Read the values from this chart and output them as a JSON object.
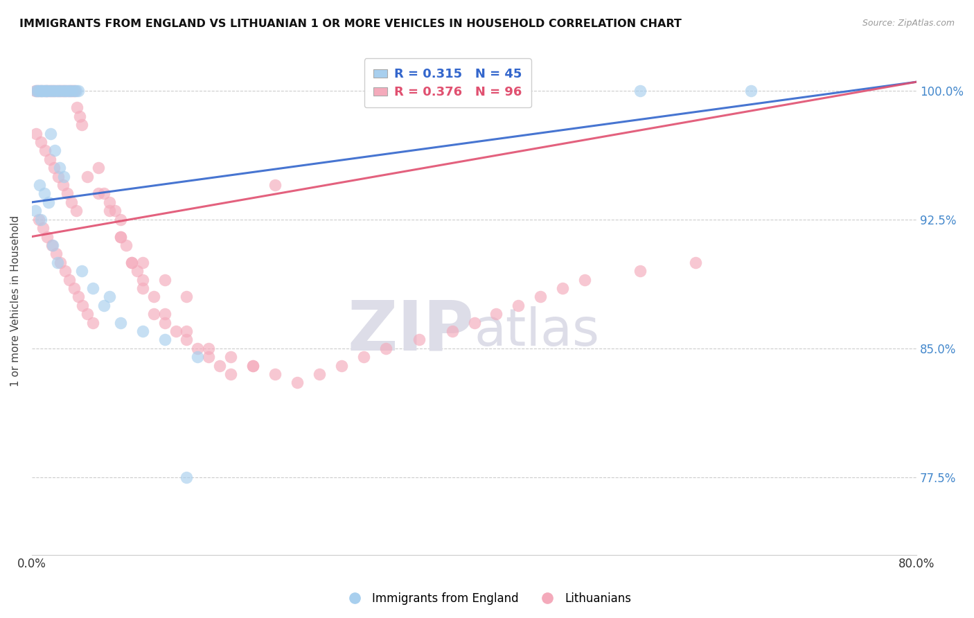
{
  "title": "IMMIGRANTS FROM ENGLAND VS LITHUANIAN 1 OR MORE VEHICLES IN HOUSEHOLD CORRELATION CHART",
  "source": "Source: ZipAtlas.com",
  "ylabel": "1 or more Vehicles in Household",
  "yticks": [
    77.5,
    85.0,
    92.5,
    100.0
  ],
  "ytick_labels": [
    "77.5%",
    "85.0%",
    "92.5%",
    "100.0%"
  ],
  "xmin": 0.0,
  "xmax": 80.0,
  "ymin": 73.0,
  "ymax": 102.5,
  "legend_england": "Immigrants from England",
  "legend_lithuanian": "Lithuanians",
  "R_england": 0.315,
  "N_england": 45,
  "R_lithuanian": 0.376,
  "N_lithuanian": 96,
  "color_england": "#A8CFEE",
  "color_lithuanian": "#F4AABB",
  "line_color_england": "#3366CC",
  "line_color_lithuanian": "#E05070",
  "england_x": [
    0.4,
    0.6,
    0.8,
    1.0,
    1.2,
    1.4,
    1.6,
    1.8,
    2.0,
    2.2,
    2.4,
    2.6,
    2.8,
    3.0,
    3.2,
    3.4,
    3.6,
    3.8,
    4.0,
    4.2,
    0.5,
    0.9,
    1.3,
    1.7,
    2.1,
    2.5,
    2.9,
    0.7,
    1.1,
    1.5,
    0.3,
    0.8,
    1.9,
    2.3,
    4.5,
    5.5,
    7.0,
    6.5,
    8.0,
    10.0,
    12.0,
    15.0,
    55.0,
    65.0,
    14.0
  ],
  "england_y": [
    100.0,
    100.0,
    100.0,
    100.0,
    100.0,
    100.0,
    100.0,
    100.0,
    100.0,
    100.0,
    100.0,
    100.0,
    100.0,
    100.0,
    100.0,
    100.0,
    100.0,
    100.0,
    100.0,
    100.0,
    100.0,
    100.0,
    100.0,
    97.5,
    96.5,
    95.5,
    95.0,
    94.5,
    94.0,
    93.5,
    93.0,
    92.5,
    91.0,
    90.0,
    89.5,
    88.5,
    88.0,
    87.5,
    86.5,
    86.0,
    85.5,
    84.5,
    100.0,
    100.0,
    77.5
  ],
  "lithuanian_x": [
    0.3,
    0.5,
    0.7,
    0.9,
    1.1,
    1.3,
    1.5,
    1.7,
    1.9,
    2.1,
    2.3,
    2.5,
    2.7,
    2.9,
    3.1,
    3.3,
    3.5,
    3.7,
    3.9,
    4.1,
    4.3,
    4.5,
    0.4,
    0.8,
    1.2,
    1.6,
    2.0,
    2.4,
    2.8,
    3.2,
    3.6,
    4.0,
    0.6,
    1.0,
    1.4,
    1.8,
    2.2,
    2.6,
    3.0,
    3.4,
    3.8,
    4.2,
    4.6,
    5.0,
    5.5,
    6.0,
    6.5,
    7.0,
    7.5,
    8.0,
    8.5,
    9.0,
    9.5,
    10.0,
    11.0,
    12.0,
    13.0,
    14.0,
    15.0,
    16.0,
    17.0,
    18.0,
    20.0,
    22.0,
    8.0,
    10.0,
    12.0,
    14.0,
    5.0,
    6.0,
    7.0,
    8.0,
    9.0,
    10.0,
    11.0,
    12.0,
    14.0,
    16.0,
    18.0,
    20.0,
    22.0,
    24.0,
    26.0,
    28.0,
    30.0,
    32.0,
    35.0,
    38.0,
    40.0,
    42.0,
    44.0,
    46.0,
    48.0,
    50.0,
    55.0,
    60.0
  ],
  "lithuanian_y": [
    100.0,
    100.0,
    100.0,
    100.0,
    100.0,
    100.0,
    100.0,
    100.0,
    100.0,
    100.0,
    100.0,
    100.0,
    100.0,
    100.0,
    100.0,
    100.0,
    100.0,
    100.0,
    100.0,
    99.0,
    98.5,
    98.0,
    97.5,
    97.0,
    96.5,
    96.0,
    95.5,
    95.0,
    94.5,
    94.0,
    93.5,
    93.0,
    92.5,
    92.0,
    91.5,
    91.0,
    90.5,
    90.0,
    89.5,
    89.0,
    88.5,
    88.0,
    87.5,
    87.0,
    86.5,
    95.5,
    94.0,
    93.5,
    93.0,
    92.5,
    91.0,
    90.0,
    89.5,
    88.5,
    87.0,
    86.5,
    86.0,
    85.5,
    85.0,
    84.5,
    84.0,
    83.5,
    84.0,
    94.5,
    91.5,
    90.0,
    89.0,
    88.0,
    95.0,
    94.0,
    93.0,
    91.5,
    90.0,
    89.0,
    88.0,
    87.0,
    86.0,
    85.0,
    84.5,
    84.0,
    83.5,
    83.0,
    83.5,
    84.0,
    84.5,
    85.0,
    85.5,
    86.0,
    86.5,
    87.0,
    87.5,
    88.0,
    88.5,
    89.0,
    89.5,
    90.0
  ],
  "reg_eng_x0": 0.0,
  "reg_eng_y0": 93.5,
  "reg_eng_x1": 80.0,
  "reg_eng_y1": 100.5,
  "reg_lit_x0": 0.0,
  "reg_lit_y0": 91.5,
  "reg_lit_x1": 80.0,
  "reg_lit_y1": 100.5
}
